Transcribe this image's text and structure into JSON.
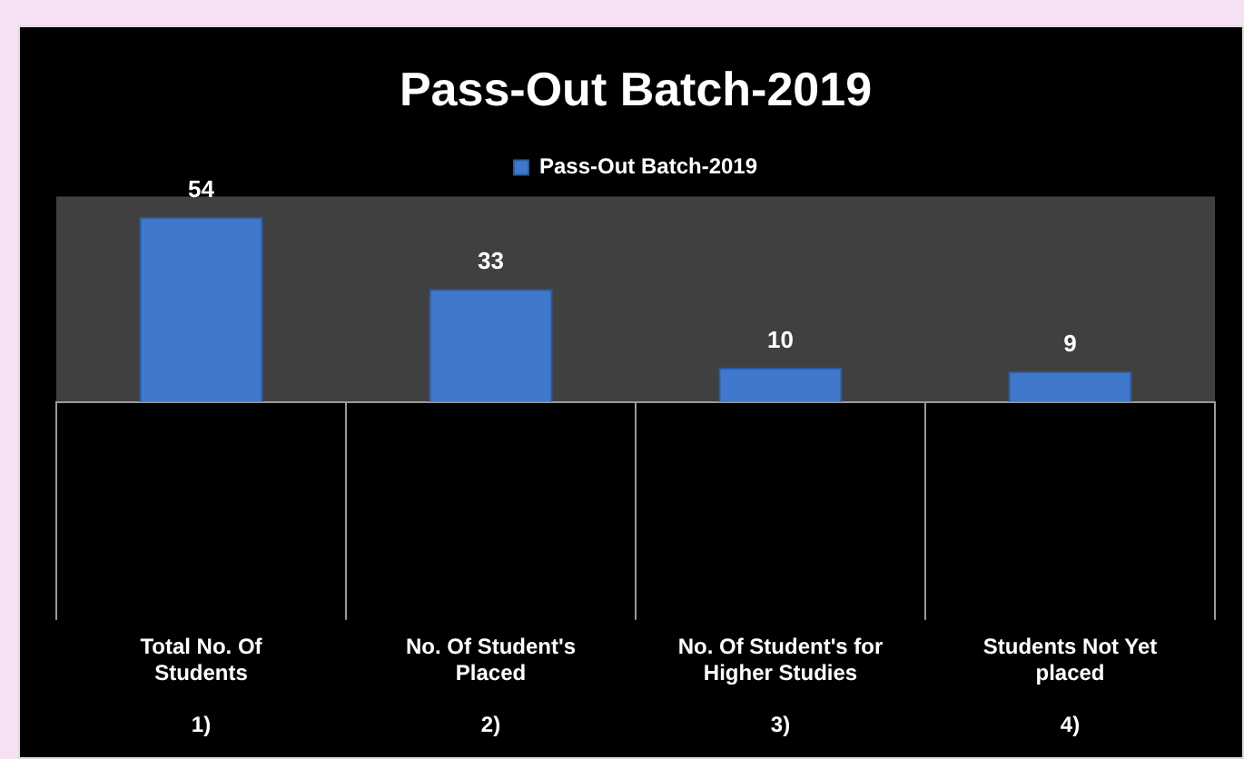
{
  "chart_data": {
    "type": "bar",
    "title": "Pass-Out Batch-2019",
    "categories": [
      "Total No. Of\nStudents\n\n1)",
      "No. Of Student's\nPlaced\n\n2)",
      "No. Of Student's for\nHigher Studies\n\n3)",
      "Students Not Yet\nplaced\n\n4)"
    ],
    "series": [
      {
        "name": "Pass-Out Batch-2019",
        "color": "#3f78cc",
        "values": [
          54,
          33,
          10,
          9
        ]
      }
    ],
    "data_labels": true,
    "legend": "top",
    "grid": false,
    "tick_labels": "x"
  }
}
